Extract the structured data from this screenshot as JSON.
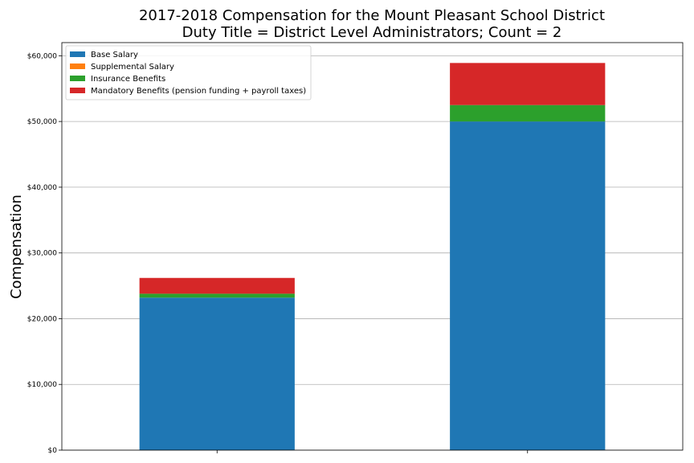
{
  "chart_data": {
    "type": "bar",
    "stacked": true,
    "title": "2017-2018 Compensation for the Mount Pleasant School District",
    "subtitle": "Duty Title = District Level Administrators; Count = 2",
    "xlabel": "",
    "ylabel": "Compensation",
    "categories": [
      "",
      ""
    ],
    "ylim": [
      0,
      62000
    ],
    "yticks": [
      0,
      10000,
      20000,
      30000,
      40000,
      50000,
      60000
    ],
    "ytick_labels": [
      "$0",
      "$10,000",
      "$20,000",
      "$30,000",
      "$40,000",
      "$50,000",
      "$60,000"
    ],
    "grid": true,
    "legend_position": "top-left",
    "series": [
      {
        "name": "Base Salary",
        "color": "#1f77b4",
        "values": [
          23200,
          50000
        ]
      },
      {
        "name": "Supplemental Salary",
        "color": "#ff7f0e",
        "values": [
          0,
          0
        ]
      },
      {
        "name": "Insurance Benefits",
        "color": "#2ca02c",
        "values": [
          600,
          2500
        ]
      },
      {
        "name": "Mandatory Benefits (pension funding + payroll taxes)",
        "color": "#d62728",
        "values": [
          2400,
          6400
        ]
      }
    ]
  }
}
